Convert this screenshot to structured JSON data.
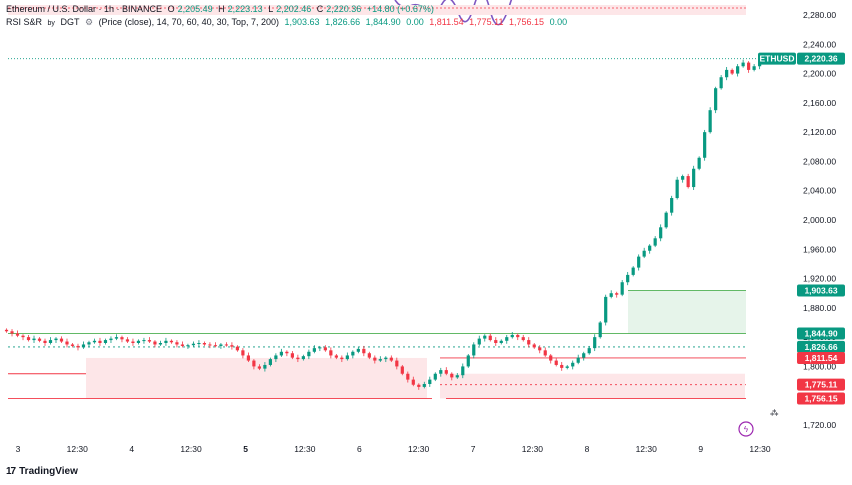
{
  "header": {
    "symbol": "Ethereum / U.S. Dollar · 1h · BINANCE",
    "o_label": "O",
    "o_value": "2,205.49",
    "h_label": "H",
    "h_value": "2,223.13",
    "l_label": "L",
    "l_value": "2,202.46",
    "c_label": "C",
    "c_value": "2,220.36",
    "change": "+14.80 (+0.67%)",
    "indicator_name": "RSI S&R",
    "indicator_by": "by",
    "indicator_author": "DGT",
    "indicator_params": "(Price (close), 14, 70, 60, 40, 30, Top, 7, 200)",
    "indicator_values": [
      "1,903.63",
      "1,826.66",
      "1,844.90",
      "0.00",
      "1,811.54",
      "1,775.11",
      "1,756.15",
      "0.00"
    ]
  },
  "branding": {
    "name": "TradingView",
    "logo_glyph": "17"
  },
  "colors": {
    "up": "#089981",
    "down": "#f23645",
    "support": "#4caf50",
    "resist_fill": "#fde6e8",
    "support_fill": "#e6f4ea",
    "rsi_line": "#7e57c2"
  },
  "chart_data": {
    "type": "candlestick",
    "symbol_tag": "ETHUSD",
    "last_price": 2220.36,
    "ylim": [
      1700,
      2300
    ],
    "y_ticks": [
      "2,280.00",
      "2,240.00",
      "2,200.00",
      "2,160.00",
      "2,120.00",
      "2,080.00",
      "2,040.00",
      "2,000.00",
      "1,960.00",
      "1,920.00",
      "1,880.00",
      "1,840.00",
      "1,800.00",
      "1,760.00",
      "1,720.00"
    ],
    "y_tick_values": [
      2280,
      2240,
      2200,
      2160,
      2120,
      2080,
      2040,
      2000,
      1960,
      1920,
      1880,
      1840,
      1800,
      1760,
      1720
    ],
    "x_ticks": [
      "3",
      "12:30",
      "4",
      "12:30",
      "5",
      "12:30",
      "6",
      "12:30",
      "7",
      "12:30",
      "8",
      "12:30",
      "9",
      "12:30"
    ],
    "x_tick_hours": [
      0,
      12.5,
      24,
      36.5,
      48,
      60.5,
      72,
      84.5,
      96,
      108.5,
      120,
      132.5,
      144,
      156.5
    ],
    "x_range_hours": [
      -3,
      164
    ],
    "bold_ticks": [
      "5"
    ],
    "levels": [
      {
        "name": "resistance-top",
        "value": 1903.63,
        "label": "1,903.63",
        "color": "#089981"
      },
      {
        "name": "support-top",
        "value": 1844.9,
        "label": "1,844.90",
        "color": "#089981"
      },
      {
        "name": "dotted-mid",
        "value": 1826.66,
        "label": "1,826.66",
        "color": "#089981"
      },
      {
        "name": "resistance-low",
        "value": 1811.54,
        "label": "1,811.54",
        "color": "#f23645"
      },
      {
        "name": "dotted-low",
        "value": 1775.11,
        "label": "1,775.11",
        "color": "#f23645"
      },
      {
        "name": "support-low",
        "value": 1756.15,
        "label": "1,756.15",
        "color": "#f23645"
      }
    ],
    "closes": [
      1848,
      1845,
      1842,
      1840,
      1836,
      1838,
      1835,
      1832,
      1836,
      1838,
      1834,
      1830,
      1828,
      1826,
      1830,
      1833,
      1835,
      1832,
      1836,
      1838,
      1840,
      1837,
      1834,
      1832,
      1835,
      1836,
      1834,
      1830,
      1832,
      1835,
      1833,
      1830,
      1828,
      1829,
      1831,
      1832,
      1830,
      1829,
      1828,
      1830,
      1829,
      1827,
      1822,
      1815,
      1808,
      1800,
      1797,
      1802,
      1810,
      1815,
      1820,
      1818,
      1812,
      1810,
      1814,
      1820,
      1825,
      1826,
      1822,
      1815,
      1812,
      1810,
      1815,
      1820,
      1824,
      1818,
      1812,
      1808,
      1810,
      1812,
      1808,
      1800,
      1790,
      1782,
      1775,
      1772,
      1776,
      1782,
      1790,
      1795,
      1790,
      1785,
      1788,
      1800,
      1815,
      1830,
      1838,
      1842,
      1836,
      1832,
      1835,
      1840,
      1843,
      1840,
      1836,
      1830,
      1826,
      1822,
      1815,
      1808,
      1802,
      1798,
      1800,
      1805,
      1812,
      1818,
      1825,
      1840,
      1860,
      1895,
      1900,
      1898,
      1915,
      1925,
      1935,
      1950,
      1958,
      1965,
      1975,
      1990,
      2010,
      2030,
      2055,
      2060,
      2045,
      2070,
      2085,
      2120,
      2150,
      2180,
      2195,
      2205,
      2200,
      2210,
      2215,
      2205,
      2210,
      2220
    ]
  }
}
